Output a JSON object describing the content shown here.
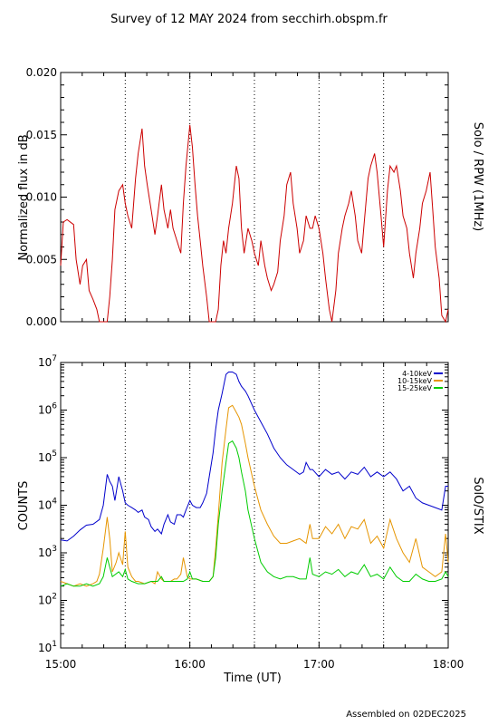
{
  "title": "Survey of 12 MAY 2024 from secchirh.obspm.fr",
  "footer": "Assembled on 02DEC2025",
  "colors": {
    "rpw": "#cc0000",
    "b1": "#0000cc",
    "b2": "#e69500",
    "b3": "#00cc00",
    "axis": "#000000"
  },
  "chart_data": [
    {
      "type": "line",
      "ylabel": "Normalized flux in dB",
      "side_label": "Solo / RPW (1MHz)",
      "ylim": [
        0,
        0.02
      ],
      "yticks": [
        "0.000",
        "0.005",
        "0.010",
        "0.015",
        "0.020"
      ],
      "xlim_hours": [
        15,
        18
      ],
      "vlines_hours": [
        15.5,
        16,
        16.5,
        17,
        17.5
      ],
      "series": [
        {
          "color": "#cc0000",
          "x": [
            15.0,
            15.02,
            15.05,
            15.1,
            15.12,
            15.15,
            15.17,
            15.2,
            15.22,
            15.25,
            15.28,
            15.3,
            15.33,
            15.36,
            15.38,
            15.4,
            15.42,
            15.45,
            15.48,
            15.5,
            15.52,
            15.55,
            15.58,
            15.6,
            15.63,
            15.65,
            15.67,
            15.7,
            15.73,
            15.75,
            15.78,
            15.8,
            15.83,
            15.85,
            15.87,
            15.9,
            15.93,
            15.95,
            15.97,
            16.0,
            16.02,
            16.04,
            16.06,
            16.08,
            16.1,
            16.13,
            16.15,
            16.18,
            16.2,
            16.22,
            16.24,
            16.26,
            16.28,
            16.3,
            16.33,
            16.36,
            16.38,
            16.4,
            16.42,
            16.45,
            16.48,
            16.5,
            16.53,
            16.55,
            16.58,
            16.6,
            16.63,
            16.65,
            16.68,
            16.7,
            16.73,
            16.75,
            16.78,
            16.8,
            16.83,
            16.85,
            16.88,
            16.9,
            16.93,
            16.95,
            16.97,
            17.0,
            17.03,
            17.05,
            17.08,
            17.1,
            17.13,
            17.15,
            17.18,
            17.2,
            17.23,
            17.25,
            17.28,
            17.3,
            17.33,
            17.35,
            17.38,
            17.4,
            17.43,
            17.45,
            17.48,
            17.5,
            17.53,
            17.55,
            17.58,
            17.6,
            17.63,
            17.65,
            17.68,
            17.7,
            17.73,
            17.75,
            17.78,
            17.8,
            17.83,
            17.86,
            17.88,
            17.9,
            17.93,
            17.95,
            17.98,
            18.0
          ],
          "y": [
            0.0045,
            0.008,
            0.0082,
            0.0078,
            0.005,
            0.003,
            0.0045,
            0.005,
            0.0025,
            0.0018,
            0.001,
            0.0,
            0.0,
            0.0,
            0.002,
            0.005,
            0.009,
            0.0105,
            0.011,
            0.0095,
            0.0085,
            0.0075,
            0.0115,
            0.0135,
            0.0155,
            0.0125,
            0.011,
            0.009,
            0.007,
            0.0085,
            0.011,
            0.009,
            0.0075,
            0.009,
            0.0075,
            0.0065,
            0.0055,
            0.0095,
            0.0125,
            0.0158,
            0.014,
            0.011,
            0.0085,
            0.0065,
            0.0045,
            0.002,
            0.0,
            0.0,
            0.0,
            0.001,
            0.0045,
            0.0065,
            0.0055,
            0.0075,
            0.0095,
            0.0125,
            0.0115,
            0.0075,
            0.0055,
            0.0075,
            0.0065,
            0.0055,
            0.0045,
            0.0065,
            0.0045,
            0.0035,
            0.0025,
            0.003,
            0.004,
            0.0065,
            0.0085,
            0.011,
            0.012,
            0.0095,
            0.0075,
            0.0055,
            0.0065,
            0.0085,
            0.0075,
            0.0075,
            0.0085,
            0.0075,
            0.0055,
            0.0035,
            0.001,
            0.0,
            0.0025,
            0.0055,
            0.0075,
            0.0085,
            0.0095,
            0.0105,
            0.0085,
            0.0065,
            0.0055,
            0.008,
            0.0115,
            0.0125,
            0.0135,
            0.012,
            0.0085,
            0.006,
            0.0105,
            0.0125,
            0.012,
            0.0125,
            0.0105,
            0.0085,
            0.0075,
            0.0055,
            0.0035,
            0.0055,
            0.0075,
            0.0095,
            0.0105,
            0.012,
            0.009,
            0.006,
            0.0035,
            0.0005,
            0.0,
            0.001
          ]
        }
      ]
    },
    {
      "type": "line",
      "ylabel": "COUNTS",
      "side_label": "SolO/STIX",
      "xlabel": "Time (UT)",
      "yscale": "log",
      "ylim": [
        10,
        10000000
      ],
      "yticks": [
        1,
        2,
        3,
        4,
        5,
        6,
        7
      ],
      "xlim_hours": [
        15,
        18
      ],
      "xticks": [
        "15:00",
        "16:00",
        "17:00",
        "18:00"
      ],
      "xtick_hours": [
        15,
        16,
        17,
        18
      ],
      "vlines_hours": [
        15.5,
        16,
        16.5,
        17,
        17.5
      ],
      "series": [
        {
          "name": "4-10keV",
          "color": "#0000cc",
          "x": [
            15.0,
            15.05,
            15.1,
            15.15,
            15.2,
            15.25,
            15.3,
            15.33,
            15.36,
            15.38,
            15.4,
            15.42,
            15.45,
            15.48,
            15.5,
            15.52,
            15.55,
            15.58,
            15.6,
            15.63,
            15.65,
            15.68,
            15.7,
            15.73,
            15.75,
            15.78,
            15.8,
            15.83,
            15.85,
            15.88,
            15.9,
            15.93,
            15.95,
            15.97,
            16.0,
            16.02,
            16.05,
            16.08,
            16.1,
            16.13,
            16.15,
            16.18,
            16.2,
            16.22,
            16.25,
            16.28,
            16.3,
            16.33,
            16.36,
            16.38,
            16.4,
            16.43,
            16.45,
            16.5,
            16.55,
            16.6,
            16.65,
            16.7,
            16.75,
            16.8,
            16.85,
            16.88,
            16.9,
            16.93,
            16.95,
            17.0,
            17.05,
            17.1,
            17.15,
            17.2,
            17.25,
            17.3,
            17.35,
            17.4,
            17.45,
            17.5,
            17.55,
            17.6,
            17.65,
            17.7,
            17.75,
            17.8,
            17.85,
            17.9,
            17.95,
            17.98,
            18.0
          ],
          "y": [
            3.27,
            3.25,
            3.35,
            3.48,
            3.58,
            3.6,
            3.7,
            4.0,
            4.65,
            4.5,
            4.4,
            4.1,
            4.6,
            4.3,
            4.05,
            4.0,
            3.95,
            3.9,
            3.85,
            3.9,
            3.75,
            3.7,
            3.55,
            3.45,
            3.5,
            3.4,
            3.6,
            3.8,
            3.65,
            3.6,
            3.8,
            3.8,
            3.75,
            3.9,
            4.1,
            4.0,
            3.95,
            3.95,
            4.05,
            4.25,
            4.6,
            5.1,
            5.6,
            6.0,
            6.35,
            6.75,
            6.8,
            6.8,
            6.75,
            6.6,
            6.5,
            6.4,
            6.3,
            6.0,
            5.75,
            5.5,
            5.2,
            5.0,
            4.85,
            4.75,
            4.65,
            4.7,
            4.9,
            4.75,
            4.75,
            4.6,
            4.75,
            4.65,
            4.7,
            4.55,
            4.7,
            4.65,
            4.8,
            4.6,
            4.7,
            4.6,
            4.7,
            4.55,
            4.3,
            4.4,
            4.15,
            4.05,
            4.0,
            3.95,
            3.9,
            4.4,
            4.4
          ]
        },
        {
          "name": "10-15keV",
          "color": "#e69500",
          "x": [
            15.0,
            15.05,
            15.1,
            15.15,
            15.2,
            15.25,
            15.28,
            15.3,
            15.33,
            15.36,
            15.38,
            15.4,
            15.43,
            15.45,
            15.48,
            15.5,
            15.52,
            15.55,
            15.58,
            15.6,
            15.65,
            15.7,
            15.73,
            15.75,
            15.78,
            15.8,
            15.85,
            15.88,
            15.9,
            15.93,
            15.95,
            15.98,
            16.0,
            16.02,
            16.05,
            16.1,
            16.15,
            16.18,
            16.2,
            16.22,
            16.25,
            16.28,
            16.3,
            16.33,
            16.35,
            16.38,
            16.4,
            16.43,
            16.45,
            16.5,
            16.55,
            16.6,
            16.65,
            16.7,
            16.75,
            16.8,
            16.85,
            16.9,
            16.93,
            16.95,
            17.0,
            17.05,
            17.1,
            17.15,
            17.2,
            17.25,
            17.3,
            17.35,
            17.4,
            17.45,
            17.5,
            17.55,
            17.6,
            17.65,
            17.7,
            17.75,
            17.8,
            17.85,
            17.9,
            17.95,
            17.98,
            18.0
          ],
          "y": [
            2.4,
            2.35,
            2.3,
            2.35,
            2.3,
            2.35,
            2.4,
            2.55,
            3.1,
            3.75,
            3.3,
            2.6,
            2.8,
            3.0,
            2.75,
            3.45,
            2.7,
            2.5,
            2.4,
            2.4,
            2.35,
            2.4,
            2.35,
            2.6,
            2.45,
            2.4,
            2.4,
            2.45,
            2.45,
            2.55,
            2.9,
            2.5,
            2.45,
            2.45,
            2.45,
            2.4,
            2.4,
            2.5,
            3.1,
            3.8,
            4.9,
            5.6,
            6.05,
            6.1,
            6.0,
            5.85,
            5.7,
            5.3,
            5.0,
            4.4,
            3.9,
            3.6,
            3.35,
            3.2,
            3.2,
            3.25,
            3.3,
            3.2,
            3.6,
            3.3,
            3.3,
            3.55,
            3.4,
            3.6,
            3.3,
            3.55,
            3.5,
            3.7,
            3.2,
            3.35,
            3.1,
            3.7,
            3.3,
            3.0,
            2.8,
            3.3,
            2.7,
            2.6,
            2.5,
            2.6,
            3.4,
            2.8
          ]
        },
        {
          "name": "15-25keV",
          "color": "#00cc00",
          "x": [
            15.0,
            15.05,
            15.1,
            15.15,
            15.2,
            15.25,
            15.3,
            15.33,
            15.36,
            15.38,
            15.4,
            15.45,
            15.48,
            15.5,
            15.52,
            15.55,
            15.6,
            15.65,
            15.7,
            15.75,
            15.78,
            15.8,
            15.85,
            15.88,
            15.9,
            15.95,
            15.98,
            16.0,
            16.02,
            16.05,
            16.1,
            16.15,
            16.18,
            16.2,
            16.22,
            16.25,
            16.28,
            16.3,
            16.33,
            16.36,
            16.38,
            16.4,
            16.43,
            16.45,
            16.5,
            16.55,
            16.6,
            16.65,
            16.7,
            16.75,
            16.8,
            16.85,
            16.9,
            16.93,
            16.95,
            17.0,
            17.05,
            17.1,
            17.15,
            17.2,
            17.25,
            17.3,
            17.35,
            17.4,
            17.45,
            17.5,
            17.55,
            17.6,
            17.65,
            17.7,
            17.75,
            17.8,
            17.85,
            17.9,
            17.95,
            17.98,
            18.0
          ],
          "y": [
            2.3,
            2.35,
            2.3,
            2.3,
            2.35,
            2.3,
            2.35,
            2.5,
            2.9,
            2.7,
            2.5,
            2.6,
            2.5,
            2.65,
            2.45,
            2.4,
            2.35,
            2.35,
            2.4,
            2.4,
            2.5,
            2.4,
            2.4,
            2.4,
            2.4,
            2.4,
            2.45,
            2.6,
            2.45,
            2.45,
            2.4,
            2.4,
            2.5,
            2.9,
            3.6,
            4.3,
            4.9,
            5.3,
            5.35,
            5.2,
            5.0,
            4.7,
            4.3,
            3.9,
            3.3,
            2.8,
            2.6,
            2.5,
            2.45,
            2.5,
            2.5,
            2.45,
            2.45,
            2.9,
            2.55,
            2.5,
            2.6,
            2.55,
            2.65,
            2.5,
            2.6,
            2.55,
            2.75,
            2.5,
            2.55,
            2.45,
            2.7,
            2.5,
            2.4,
            2.4,
            2.55,
            2.45,
            2.4,
            2.4,
            2.45,
            2.6,
            2.5
          ]
        }
      ]
    }
  ]
}
